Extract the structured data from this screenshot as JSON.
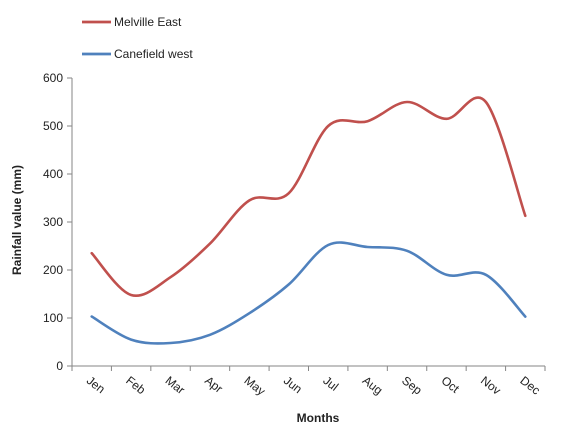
{
  "chart_data": {
    "type": "line",
    "title": "",
    "xlabel": "Months",
    "ylabel": "Rainfall value (mm)",
    "categories": [
      "Jen",
      "Feb",
      "Mar",
      "Apr",
      "May",
      "Jun",
      "Jul",
      "Aug",
      "Sep",
      "Oct",
      "Nov",
      "Dec"
    ],
    "ylim": [
      0,
      600
    ],
    "yticks": [
      0,
      100,
      200,
      300,
      400,
      500,
      600
    ],
    "grid": false,
    "legend_position": "top-left",
    "series": [
      {
        "name": "Melville East",
        "color": "#c0504d",
        "values": [
          235,
          148,
          185,
          255,
          345,
          360,
          500,
          510,
          550,
          515,
          550,
          313
        ]
      },
      {
        "name": "Canefield west",
        "color": "#4f81bd",
        "values": [
          103,
          55,
          48,
          65,
          110,
          170,
          252,
          248,
          240,
          190,
          190,
          103
        ]
      }
    ]
  }
}
